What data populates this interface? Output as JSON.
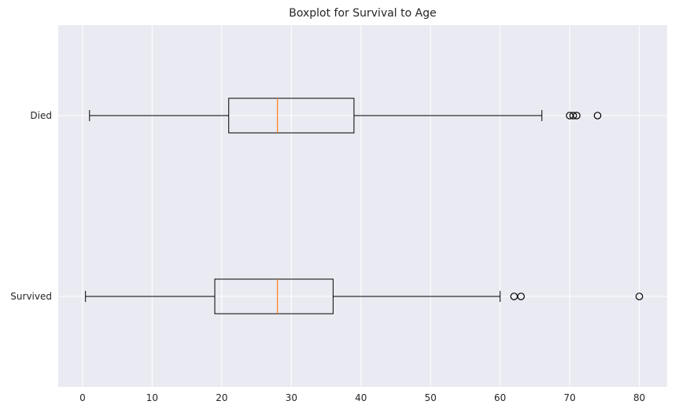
{
  "chart_data": {
    "type": "boxplot",
    "orientation": "horizontal",
    "title": "Boxplot for Survival to Age",
    "xlabel": "",
    "ylabel": "",
    "xlim": [
      -3.5,
      84
    ],
    "xticks": [
      0,
      10,
      20,
      30,
      40,
      50,
      60,
      70,
      80
    ],
    "grid": true,
    "categories": [
      "Survived",
      "Died"
    ],
    "boxes": [
      {
        "label": "Survived",
        "whisker_low": 0.42,
        "q1": 19,
        "median": 28,
        "q3": 36,
        "whisker_high": 60,
        "outliers": [
          62,
          63,
          80
        ]
      },
      {
        "label": "Died",
        "whisker_low": 1,
        "q1": 21,
        "median": 28,
        "q3": 39,
        "whisker_high": 66,
        "outliers": [
          70,
          70.5,
          71,
          74
        ]
      }
    ],
    "colors": {
      "background": "#eaeaf2",
      "grid": "#ffffff",
      "box": "#000000",
      "median": "#ff7f0e",
      "text": "#262626"
    }
  }
}
